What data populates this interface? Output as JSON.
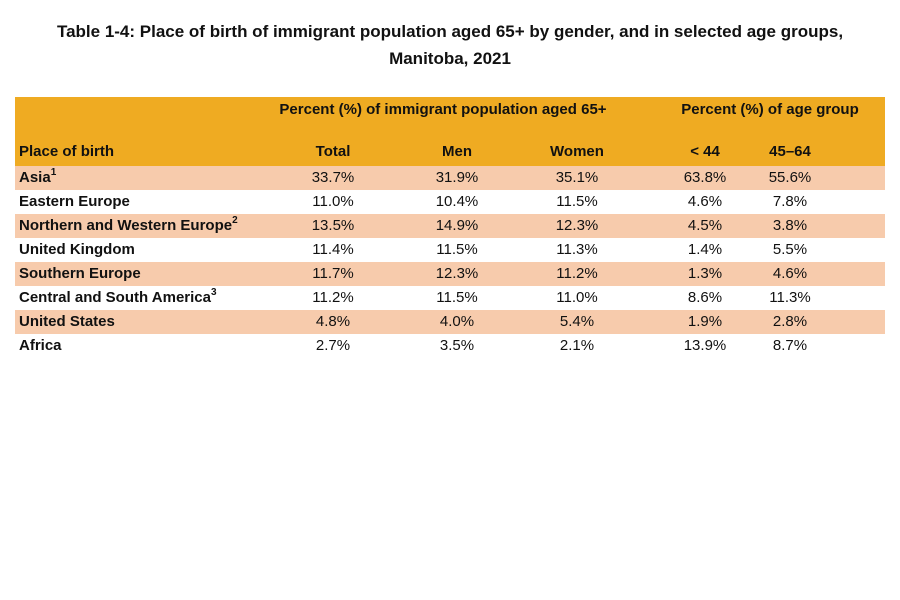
{
  "title": "Table 1-4: Place of birth of immigrant population aged 65+ by gender, and in selected age groups, Manitoba, 2021",
  "colors": {
    "header": "#efab22",
    "shaded_row": "#f7cbac"
  },
  "header": {
    "group1": "Percent (%) of immigrant population aged 65+",
    "group2": "Percent (%) of age group",
    "columns": [
      "Place of birth",
      "Total",
      "Men",
      "Women",
      "< 44",
      "45–64"
    ]
  },
  "rows": [
    {
      "place": "Asia",
      "note": "1",
      "values": [
        "33.7%",
        "31.9%",
        "35.1%",
        "63.8%",
        "55.6%"
      ]
    },
    {
      "place": "Eastern Europe",
      "note": "",
      "values": [
        "11.0%",
        "10.4%",
        "11.5%",
        "4.6%",
        "7.8%"
      ]
    },
    {
      "place": "Northern and Western Europe",
      "note": "2",
      "values": [
        "13.5%",
        "14.9%",
        "12.3%",
        "4.5%",
        "3.8%"
      ]
    },
    {
      "place": "United Kingdom",
      "note": "",
      "values": [
        "11.4%",
        "11.5%",
        "11.3%",
        "1.4%",
        "5.5%"
      ]
    },
    {
      "place": "Southern Europe",
      "note": "",
      "values": [
        "11.7%",
        "12.3%",
        "11.2%",
        "1.3%",
        "4.6%"
      ]
    },
    {
      "place": "Central and South America",
      "note": "3",
      "values": [
        "11.2%",
        "11.5%",
        "11.0%",
        "8.6%",
        "11.3%"
      ]
    },
    {
      "place": "United States",
      "note": "",
      "values": [
        "4.8%",
        "4.0%",
        "5.4%",
        "1.9%",
        "2.8%"
      ]
    },
    {
      "place": "Africa",
      "note": "",
      "values": [
        "2.7%",
        "3.5%",
        "2.1%",
        "13.9%",
        "8.7%"
      ]
    }
  ]
}
